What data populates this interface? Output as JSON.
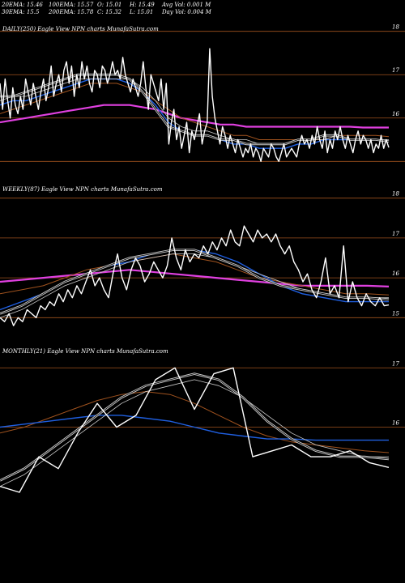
{
  "header": {
    "ema20": "20EMA: 15.46",
    "ema30": "30EMA: 15.5",
    "ema100": "100EMA: 15.57",
    "ema200": "200EMA: 15.78",
    "open": "O: 15.01",
    "close": "C: 15.32",
    "high": "H: 15.49",
    "low": "L: 15.01",
    "avg_vol": "Avg Vol: 0.001 M",
    "day_vol": "Day Vol: 0.004  M"
  },
  "colors": {
    "background": "#000000",
    "price": "#ffffff",
    "ema_short": "#cccccc",
    "ema_blue": "#1f5fe0",
    "ema_orange": "#a0521e",
    "ema_magenta": "#e040e0",
    "grid": "#a0521e"
  },
  "chart_data": [
    {
      "type": "line",
      "title": "DAILY(250) Eagle  View  NPN  charts MunafaSutra.com",
      "ylim": [
        14.8,
        18.2
      ],
      "yticks": [
        15,
        16,
        17,
        18
      ],
      "ytick_labels": [
        "",
        "16",
        "17",
        "18"
      ],
      "series": [
        {
          "role": "price",
          "values": [
            16.8,
            16.2,
            16.9,
            16.4,
            16.0,
            16.7,
            16.3,
            16.1,
            16.5,
            16.2,
            16.9,
            16.6,
            16.3,
            16.8,
            16.5,
            16.2,
            16.6,
            16.9,
            16.4,
            16.7,
            17.2,
            16.5,
            16.8,
            17.0,
            16.6,
            17.1,
            17.3,
            16.8,
            17.2,
            16.5,
            17.0,
            16.7,
            17.3,
            16.9,
            17.2,
            16.8,
            16.6,
            17.1,
            17.0,
            16.7,
            17.2,
            17.1,
            16.8,
            17.0,
            17.3,
            17.0,
            17.1,
            16.9,
            17.4,
            17.0,
            16.8,
            16.6,
            16.9,
            16.7,
            16.5,
            16.8,
            17.3,
            16.7,
            16.2,
            17.0,
            16.8,
            16.6,
            16.4,
            16.9,
            16.2,
            16.8,
            15.4,
            15.9,
            16.2,
            15.5,
            15.8,
            15.3,
            15.6,
            15.9,
            15.2,
            15.7,
            15.5,
            15.8,
            16.1,
            15.4,
            15.7,
            15.9,
            17.6,
            16.5,
            16.0,
            15.7,
            15.4,
            15.8,
            15.6,
            15.3,
            15.6,
            15.4,
            15.2,
            15.5,
            15.3,
            15.1,
            15.3,
            15.2,
            15.4,
            15.1,
            15.3,
            15.2,
            15.0,
            15.3,
            15.2,
            15.1,
            15.4,
            15.3,
            15.1,
            15.0,
            15.2,
            15.4,
            15.1,
            15.2,
            15.3,
            15.2,
            15.1,
            15.4,
            15.6,
            15.4,
            15.5,
            15.3,
            15.6,
            15.4,
            15.8,
            15.5,
            15.3,
            15.7,
            15.2,
            15.5,
            15.3,
            15.7,
            15.5,
            15.8,
            15.5,
            15.3,
            15.6,
            15.4,
            15.2,
            15.5,
            15.7,
            15.4,
            15.6,
            15.5,
            15.3,
            15.5,
            15.2,
            15.4,
            15.3,
            15.6,
            15.3,
            15.5,
            15.32
          ]
        },
        {
          "role": "ema_short",
          "values": [
            16.5,
            16.5,
            16.6,
            16.7,
            16.8,
            16.9,
            17.0,
            17.0,
            17.0,
            17.0,
            16.9,
            16.6,
            16.2,
            15.8,
            15.7,
            15.6,
            15.6,
            15.5,
            15.5,
            15.4,
            15.4,
            15.4,
            15.4,
            15.5,
            15.5,
            15.6,
            15.6,
            15.5,
            15.5,
            15.5,
            15.46
          ]
        },
        {
          "role": "ema_mid",
          "values": [
            16.4,
            16.5,
            16.5,
            16.6,
            16.7,
            16.8,
            16.9,
            16.9,
            16.9,
            16.9,
            16.9,
            16.7,
            16.4,
            16.0,
            15.8,
            15.7,
            15.7,
            15.6,
            15.5,
            15.5,
            15.4,
            15.4,
            15.4,
            15.5,
            15.5,
            15.5,
            15.6,
            15.5,
            15.5,
            15.5,
            15.5
          ]
        },
        {
          "role": "ema_blue",
          "values": [
            16.3,
            16.4,
            16.4,
            16.5,
            16.6,
            16.7,
            16.8,
            16.9,
            16.9,
            16.9,
            16.8,
            16.6,
            16.3,
            15.9,
            15.7,
            15.6,
            15.6,
            15.5,
            15.4,
            15.4,
            15.3,
            15.3,
            15.3,
            15.4,
            15.4,
            15.5,
            15.5,
            15.5,
            15.5,
            15.5,
            15.46
          ]
        },
        {
          "role": "ema_orange",
          "values": [
            16.1,
            16.2,
            16.3,
            16.4,
            16.5,
            16.6,
            16.7,
            16.8,
            16.8,
            16.8,
            16.7,
            16.6,
            16.4,
            16.2,
            16.0,
            15.9,
            15.8,
            15.7,
            15.6,
            15.6,
            15.5,
            15.5,
            15.5,
            15.5,
            15.5,
            15.5,
            15.6,
            15.6,
            15.6,
            15.6,
            15.57
          ]
        },
        {
          "role": "ema_magenta",
          "values": [
            15.9,
            15.95,
            16.0,
            16.05,
            16.1,
            16.15,
            16.2,
            16.25,
            16.3,
            16.3,
            16.3,
            16.25,
            16.2,
            16.1,
            16.0,
            15.95,
            15.9,
            15.85,
            15.85,
            15.8,
            15.8,
            15.8,
            15.8,
            15.8,
            15.8,
            15.8,
            15.8,
            15.8,
            15.78,
            15.78,
            15.78
          ]
        }
      ]
    },
    {
      "type": "line",
      "title": "WEEKLY(87) Eagle  View  NPN  charts MunafaSutra.com",
      "ylim": [
        14.6,
        18.4
      ],
      "yticks": [
        15,
        16,
        17,
        18
      ],
      "ytick_labels": [
        "15",
        "16",
        "17",
        "18"
      ],
      "series": [
        {
          "role": "price",
          "values": [
            15.0,
            14.9,
            15.1,
            14.8,
            15.0,
            14.9,
            15.2,
            15.1,
            15.0,
            15.3,
            15.2,
            15.4,
            15.3,
            15.6,
            15.4,
            15.7,
            15.5,
            15.8,
            15.6,
            15.9,
            16.2,
            15.8,
            16.0,
            15.7,
            15.5,
            16.1,
            16.6,
            16.0,
            15.7,
            16.2,
            16.5,
            16.3,
            15.9,
            16.1,
            16.4,
            16.2,
            16.0,
            16.3,
            17.0,
            16.5,
            16.2,
            16.7,
            16.4,
            16.6,
            16.5,
            16.8,
            16.6,
            16.9,
            16.7,
            17.0,
            16.8,
            17.2,
            16.9,
            16.8,
            17.3,
            17.1,
            16.9,
            17.2,
            17.0,
            17.1,
            16.9,
            17.1,
            16.8,
            16.6,
            16.8,
            16.4,
            16.2,
            15.9,
            16.1,
            15.7,
            15.5,
            15.9,
            16.5,
            15.6,
            15.8,
            15.5,
            16.8,
            15.4,
            15.9,
            15.5,
            15.3,
            15.6,
            15.4,
            15.3,
            15.5,
            15.3,
            15.32
          ]
        },
        {
          "role": "ema_short",
          "values": [
            15.1,
            15.3,
            15.6,
            15.9,
            16.1,
            16.3,
            16.5,
            16.6,
            16.7,
            16.7,
            16.5,
            16.3,
            16.0,
            15.8,
            15.7,
            15.6,
            15.5,
            15.5,
            15.46
          ]
        },
        {
          "role": "ema_mid",
          "values": [
            15.0,
            15.2,
            15.5,
            15.8,
            16.0,
            16.2,
            16.4,
            16.5,
            16.6,
            16.6,
            16.5,
            16.3,
            16.1,
            15.9,
            15.7,
            15.6,
            15.5,
            15.5,
            15.5
          ]
        },
        {
          "role": "ema_blue",
          "values": [
            15.2,
            15.4,
            15.6,
            15.9,
            16.1,
            16.3,
            16.4,
            16.6,
            16.7,
            16.7,
            16.6,
            16.4,
            16.1,
            15.8,
            15.6,
            15.5,
            15.4,
            15.4,
            15.4
          ]
        },
        {
          "role": "ema_orange",
          "values": [
            15.6,
            15.7,
            15.8,
            16.0,
            16.2,
            16.3,
            16.4,
            16.5,
            16.6,
            16.5,
            16.4,
            16.2,
            16.0,
            15.9,
            15.8,
            15.7,
            15.6,
            15.6,
            15.57
          ]
        },
        {
          "role": "ema_magenta",
          "values": [
            15.9,
            15.95,
            16.0,
            16.05,
            16.1,
            16.15,
            16.2,
            16.15,
            16.1,
            16.05,
            16.0,
            15.95,
            15.9,
            15.85,
            15.8,
            15.8,
            15.8,
            15.8,
            15.78
          ]
        }
      ]
    },
    {
      "type": "line",
      "title": "MONTHLY(21) Eagle  View  NPN  charts MunafaSutra.com",
      "ylim": [
        14.6,
        17.4
      ],
      "yticks": [
        16,
        17
      ],
      "ytick_labels": [
        "16",
        "17"
      ],
      "series": [
        {
          "role": "price",
          "values": [
            15.0,
            14.9,
            15.5,
            15.3,
            15.9,
            16.4,
            16.0,
            16.2,
            16.8,
            17.0,
            16.3,
            16.9,
            17.0,
            15.5,
            15.6,
            15.7,
            15.5,
            15.5,
            15.6,
            15.4,
            15.32
          ]
        },
        {
          "role": "ema_short",
          "values": [
            15.1,
            15.3,
            15.6,
            15.9,
            16.2,
            16.5,
            16.7,
            16.8,
            16.9,
            16.8,
            16.5,
            16.1,
            15.8,
            15.6,
            15.5,
            15.5,
            15.46
          ]
        },
        {
          "role": "ema_mid",
          "values": [
            15.0,
            15.2,
            15.5,
            15.8,
            16.1,
            16.4,
            16.6,
            16.7,
            16.8,
            16.7,
            16.5,
            16.2,
            15.9,
            15.7,
            15.6,
            15.5,
            15.5
          ]
        },
        {
          "role": "ema_blue",
          "values": [
            16.0,
            16.05,
            16.1,
            16.15,
            16.2,
            16.2,
            16.15,
            16.1,
            16.0,
            15.9,
            15.85,
            15.8,
            15.8,
            15.78,
            15.78,
            15.78,
            15.78
          ]
        },
        {
          "role": "ema_orange",
          "values": [
            15.9,
            16.0,
            16.15,
            16.3,
            16.45,
            16.55,
            16.6,
            16.55,
            16.4,
            16.2,
            16.0,
            15.85,
            15.75,
            15.7,
            15.65,
            15.6,
            15.57
          ]
        }
      ]
    }
  ]
}
